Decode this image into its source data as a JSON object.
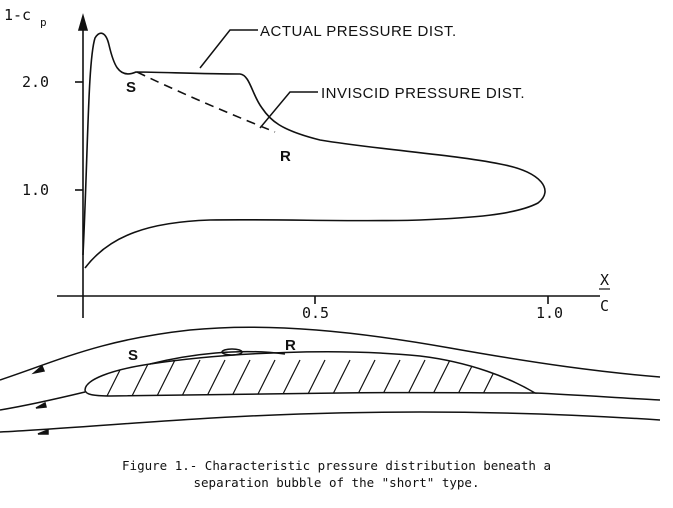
{
  "figure": {
    "y_axis_label": "1-c",
    "y_axis_sub": "p",
    "x_axis_label_top": "X",
    "x_axis_label_bottom": "C",
    "y_ticks": [
      "2.0",
      "1.0"
    ],
    "x_ticks": [
      "0.5",
      "1.0"
    ],
    "callout_actual": "ACTUAL PRESSURE DIST.",
    "callout_inviscid": "INVISCID PRESSURE DIST.",
    "separation_label": "S",
    "reattachment_label": "R",
    "airfoil_separation_label": "S",
    "airfoil_reattachment_label": "R"
  },
  "caption": {
    "line1": "Figure 1.- Characteristic pressure distribution beneath a",
    "line2": "separation bubble of the \"short\" type."
  }
}
